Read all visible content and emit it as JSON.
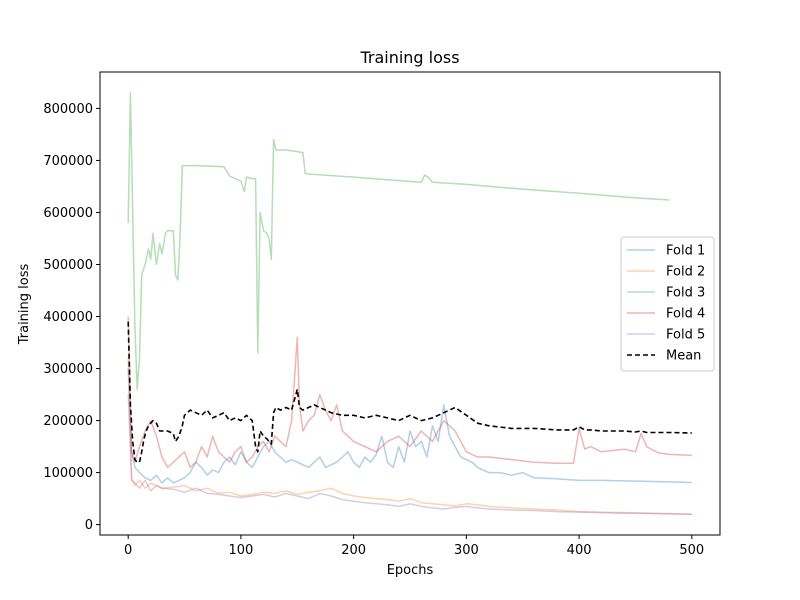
{
  "chart_data": {
    "type": "line",
    "title": "Training loss",
    "xlabel": "Epochs",
    "ylabel": "Training loss",
    "xlim": [
      -25,
      525
    ],
    "ylim": [
      -20000,
      870000
    ],
    "xticks": [
      0,
      100,
      200,
      300,
      400,
      500
    ],
    "yticks": [
      0,
      100000,
      200000,
      300000,
      400000,
      500000,
      600000,
      700000,
      800000
    ],
    "grid": false,
    "legend": "center-right",
    "series": [
      {
        "name": "Fold 1",
        "color": "#1f77b4",
        "alpha": 0.35,
        "dashed": false,
        "x": [
          0,
          3,
          6,
          10,
          15,
          20,
          25,
          30,
          35,
          40,
          45,
          50,
          55,
          60,
          65,
          70,
          75,
          80,
          85,
          90,
          95,
          100,
          105,
          110,
          115,
          120,
          125,
          130,
          135,
          140,
          145,
          150,
          155,
          160,
          165,
          170,
          175,
          180,
          185,
          190,
          195,
          200,
          205,
          210,
          215,
          220,
          225,
          230,
          235,
          240,
          245,
          250,
          255,
          260,
          265,
          270,
          275,
          280,
          285,
          290,
          295,
          300,
          305,
          310,
          320,
          330,
          340,
          350,
          360,
          380,
          400,
          420,
          440,
          460,
          480,
          500
        ],
        "y": [
          300000,
          140000,
          110000,
          100000,
          90000,
          85000,
          95000,
          80000,
          90000,
          80000,
          85000,
          90000,
          100000,
          120000,
          110000,
          95000,
          105000,
          100000,
          120000,
          130000,
          115000,
          140000,
          120000,
          110000,
          130000,
          150000,
          160000,
          140000,
          130000,
          120000,
          125000,
          120000,
          115000,
          110000,
          120000,
          130000,
          110000,
          115000,
          120000,
          130000,
          140000,
          120000,
          110000,
          130000,
          120000,
          135000,
          170000,
          120000,
          110000,
          150000,
          120000,
          180000,
          150000,
          160000,
          130000,
          190000,
          160000,
          230000,
          170000,
          150000,
          130000,
          125000,
          120000,
          110000,
          100000,
          100000,
          95000,
          100000,
          90000,
          88000,
          85000,
          85000,
          84000,
          83000,
          82000,
          81000
        ]
      },
      {
        "name": "Fold 2",
        "color": "#ff7f0e",
        "alpha": 0.35,
        "dashed": false,
        "x": [
          0,
          3,
          6,
          10,
          15,
          20,
          25,
          30,
          40,
          50,
          60,
          70,
          80,
          90,
          100,
          110,
          120,
          130,
          140,
          150,
          160,
          170,
          180,
          190,
          200,
          210,
          220,
          230,
          240,
          250,
          260,
          270,
          280,
          290,
          300,
          310,
          320,
          340,
          360,
          380,
          400,
          420,
          440,
          460,
          480,
          500
        ],
        "y": [
          320000,
          90000,
          75000,
          85000,
          70000,
          80000,
          75000,
          70000,
          72000,
          75000,
          65000,
          70000,
          60000,
          62000,
          55000,
          58000,
          62000,
          60000,
          65000,
          58000,
          62000,
          65000,
          70000,
          60000,
          55000,
          52000,
          50000,
          48000,
          45000,
          50000,
          42000,
          40000,
          38000,
          36000,
          40000,
          38000,
          35000,
          32000,
          30000,
          28000,
          25000,
          24000,
          23000,
          22000,
          21000,
          20000
        ]
      },
      {
        "name": "Fold 3",
        "color": "#2ca02c",
        "alpha": 0.35,
        "dashed": false,
        "x": [
          0,
          2,
          4,
          6,
          8,
          10,
          12,
          15,
          18,
          20,
          22,
          25,
          28,
          30,
          33,
          35,
          40,
          42,
          44,
          46,
          48,
          60,
          85,
          90,
          100,
          103,
          105,
          110,
          113,
          115,
          117,
          120,
          123,
          125,
          127,
          129,
          131,
          140,
          150,
          155,
          157,
          160,
          200,
          260,
          263,
          266,
          270,
          300,
          350,
          400,
          450,
          480
        ],
        "y": [
          580000,
          830000,
          600000,
          380000,
          260000,
          320000,
          480000,
          500000,
          530000,
          510000,
          560000,
          500000,
          540000,
          520000,
          560000,
          565000,
          565000,
          480000,
          470000,
          550000,
          690000,
          690000,
          688000,
          670000,
          660000,
          640000,
          668000,
          665000,
          665000,
          330000,
          600000,
          565000,
          560000,
          550000,
          510000,
          740000,
          720000,
          720000,
          717000,
          715000,
          675000,
          674000,
          668000,
          658000,
          672000,
          668000,
          658000,
          654000,
          645000,
          637000,
          628000,
          624000
        ]
      },
      {
        "name": "Fold 4",
        "color": "#d62728",
        "alpha": 0.35,
        "dashed": false,
        "x": [
          0,
          3,
          6,
          10,
          15,
          20,
          25,
          30,
          35,
          40,
          45,
          50,
          55,
          60,
          65,
          70,
          75,
          80,
          85,
          90,
          95,
          100,
          105,
          110,
          115,
          120,
          125,
          130,
          135,
          140,
          145,
          150,
          152,
          155,
          160,
          165,
          170,
          175,
          180,
          185,
          190,
          200,
          210,
          220,
          230,
          240,
          250,
          260,
          270,
          280,
          290,
          300,
          310,
          320,
          340,
          360,
          380,
          395,
          400,
          405,
          410,
          420,
          440,
          450,
          455,
          460,
          470,
          480,
          500
        ],
        "y": [
          400000,
          140000,
          120000,
          150000,
          180000,
          200000,
          170000,
          130000,
          110000,
          120000,
          130000,
          140000,
          110000,
          120000,
          150000,
          130000,
          170000,
          140000,
          130000,
          120000,
          140000,
          150000,
          120000,
          130000,
          150000,
          160000,
          140000,
          170000,
          160000,
          150000,
          200000,
          360000,
          230000,
          180000,
          200000,
          210000,
          250000,
          220000,
          200000,
          230000,
          180000,
          160000,
          150000,
          140000,
          160000,
          170000,
          150000,
          180000,
          160000,
          200000,
          180000,
          140000,
          130000,
          130000,
          125000,
          120000,
          118000,
          118000,
          185000,
          145000,
          150000,
          140000,
          145000,
          140000,
          175000,
          150000,
          138000,
          135000,
          133000
        ]
      },
      {
        "name": "Fold 5",
        "color": "#9467bd",
        "alpha": 0.35,
        "dashed": false,
        "x": [
          0,
          3,
          6,
          10,
          15,
          20,
          25,
          30,
          40,
          50,
          60,
          70,
          80,
          90,
          100,
          110,
          120,
          130,
          140,
          150,
          160,
          170,
          180,
          190,
          200,
          210,
          220,
          230,
          240,
          250,
          260,
          270,
          280,
          290,
          300,
          310,
          320,
          340,
          360,
          380,
          400,
          420,
          440,
          460,
          480,
          500
        ],
        "y": [
          250000,
          85000,
          80000,
          70000,
          85000,
          65000,
          75000,
          70000,
          68000,
          62000,
          70000,
          60000,
          58000,
          55000,
          52000,
          55000,
          58000,
          53000,
          60000,
          55000,
          50000,
          60000,
          55000,
          48000,
          45000,
          42000,
          40000,
          38000,
          35000,
          40000,
          35000,
          32000,
          30000,
          33000,
          35000,
          32000,
          30000,
          28000,
          27000,
          25000,
          24000,
          23000,
          22000,
          21500,
          21000,
          20000
        ]
      },
      {
        "name": "Mean",
        "color": "#000000",
        "alpha": 1,
        "dashed": true,
        "x": [
          0,
          2,
          4,
          6,
          8,
          10,
          12,
          14,
          16,
          18,
          20,
          22,
          25,
          28,
          30,
          35,
          40,
          42,
          45,
          48,
          50,
          55,
          60,
          65,
          70,
          75,
          80,
          85,
          90,
          95,
          100,
          105,
          110,
          113,
          115,
          117,
          120,
          123,
          125,
          127,
          129,
          131,
          135,
          140,
          145,
          150,
          152,
          155,
          160,
          165,
          170,
          180,
          190,
          200,
          210,
          220,
          230,
          240,
          250,
          260,
          270,
          280,
          290,
          300,
          310,
          320,
          340,
          360,
          380,
          395,
          400,
          405,
          410,
          420,
          440,
          450,
          455,
          460,
          470,
          480,
          500
        ],
        "y": [
          390000,
          230000,
          160000,
          125000,
          120000,
          120000,
          140000,
          165000,
          180000,
          190000,
          195000,
          200000,
          195000,
          180000,
          180000,
          180000,
          175000,
          160000,
          170000,
          190000,
          210000,
          220000,
          215000,
          210000,
          220000,
          205000,
          210000,
          215000,
          200000,
          205000,
          200000,
          210000,
          200000,
          150000,
          140000,
          180000,
          170000,
          165000,
          160000,
          155000,
          215000,
          225000,
          220000,
          225000,
          220000,
          260000,
          225000,
          220000,
          225000,
          230000,
          225000,
          215000,
          210000,
          210000,
          205000,
          210000,
          205000,
          200000,
          210000,
          200000,
          205000,
          215000,
          225000,
          210000,
          195000,
          190000,
          185000,
          185000,
          182000,
          182000,
          188000,
          182000,
          182000,
          180000,
          180000,
          178000,
          180000,
          177000,
          177000,
          177000,
          176000
        ]
      }
    ]
  }
}
